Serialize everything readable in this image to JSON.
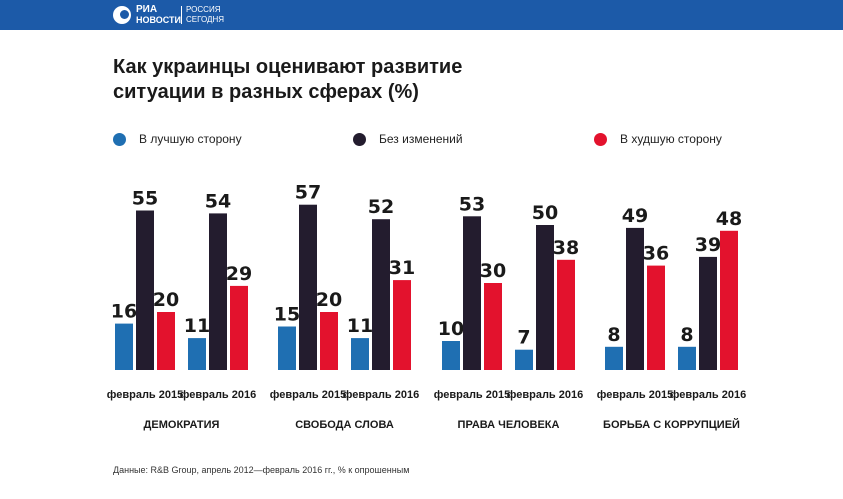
{
  "header": {
    "logo_ria": "РИА",
    "logo_news": "НОВОСТИ",
    "logo_rossiya": "РОССИЯ",
    "logo_segodnya": "СЕГОДНЯ",
    "bar_color": "#1c5aa8"
  },
  "legend": [
    {
      "label": "В лучшую сторону",
      "color": "#1f6fb2"
    },
    {
      "label": "Без изменений",
      "color": "#231c2e"
    },
    {
      "label": "В худшую сторону",
      "color": "#e3122d"
    }
  ],
  "chart_data": {
    "type": "bar",
    "title": "Как украинцы оценивают развитие ситуации в разных сферах (%)",
    "series_names": [
      "В лучшую сторону",
      "Без изменений",
      "В худшую сторону"
    ],
    "colors": [
      "#1f6fb2",
      "#231c2e",
      "#e3122d"
    ],
    "groups": [
      {
        "name": "ДЕМОКРАТИЯ",
        "periods": [
          {
            "label": "февраль 2015",
            "values": [
              16,
              55,
              20
            ]
          },
          {
            "label": "февраль 2016",
            "values": [
              11,
              54,
              29
            ]
          }
        ]
      },
      {
        "name": "СВОБОДА СЛОВА",
        "periods": [
          {
            "label": "февраль 2015",
            "values": [
              15,
              57,
              20
            ]
          },
          {
            "label": "февраль 2016",
            "values": [
              11,
              52,
              31
            ]
          }
        ]
      },
      {
        "name": "ПРАВА ЧЕЛОВЕКА",
        "periods": [
          {
            "label": "февраль 2015",
            "values": [
              10,
              53,
              30
            ]
          },
          {
            "label": "февраль 2016",
            "values": [
              7,
              50,
              38
            ]
          }
        ]
      },
      {
        "name": "БОРЬБА С КОРРУПЦИЕЙ",
        "periods": [
          {
            "label": "февраль 2015",
            "values": [
              8,
              49,
              36
            ]
          },
          {
            "label": "февраль 2016",
            "values": [
              8,
              39,
              48
            ]
          }
        ]
      }
    ]
  },
  "source": "Данные: R&B Group, апрель 2012—февраль 2016 гг., % к опрошенным"
}
